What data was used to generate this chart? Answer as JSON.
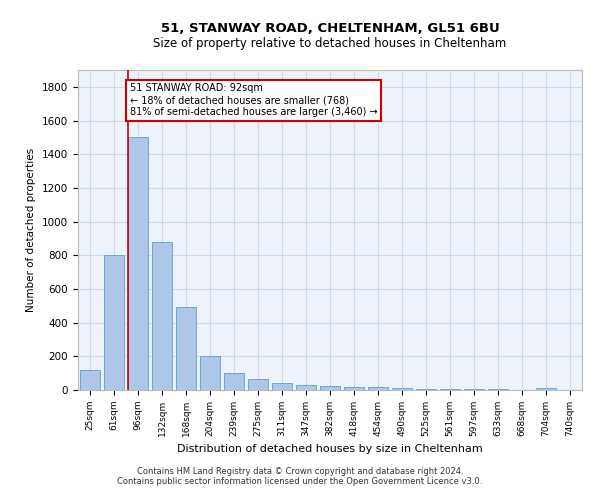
{
  "title1": "51, STANWAY ROAD, CHELTENHAM, GL51 6BU",
  "title2": "Size of property relative to detached houses in Cheltenham",
  "xlabel": "Distribution of detached houses by size in Cheltenham",
  "ylabel": "Number of detached properties",
  "footer1": "Contains HM Land Registry data © Crown copyright and database right 2024.",
  "footer2": "Contains public sector information licensed under the Open Government Licence v3.0.",
  "categories": [
    "25sqm",
    "61sqm",
    "96sqm",
    "132sqm",
    "168sqm",
    "204sqm",
    "239sqm",
    "275sqm",
    "311sqm",
    "347sqm",
    "382sqm",
    "418sqm",
    "454sqm",
    "490sqm",
    "525sqm",
    "561sqm",
    "597sqm",
    "633sqm",
    "668sqm",
    "704sqm",
    "740sqm"
  ],
  "values": [
    120,
    800,
    1500,
    880,
    490,
    200,
    100,
    65,
    42,
    30,
    25,
    20,
    15,
    10,
    7,
    5,
    4,
    3,
    2,
    10,
    0
  ],
  "bar_color": "#aec6e8",
  "bar_edge_color": "#5a9fd4",
  "red_line_index": 2,
  "annotation_line1": "51 STANWAY ROAD: 92sqm",
  "annotation_line2": "← 18% of detached houses are smaller (768)",
  "annotation_line3": "81% of semi-detached houses are larger (3,460) →",
  "annotation_box_color": "#ffffff",
  "annotation_border_color": "#cc0000",
  "ylim": [
    0,
    1900
  ],
  "yticks": [
    0,
    200,
    400,
    600,
    800,
    1000,
    1200,
    1400,
    1600,
    1800
  ],
  "grid_color": "#d0d8e8",
  "background_color": "#ffffff",
  "plot_bg_color": "#eef2fa"
}
